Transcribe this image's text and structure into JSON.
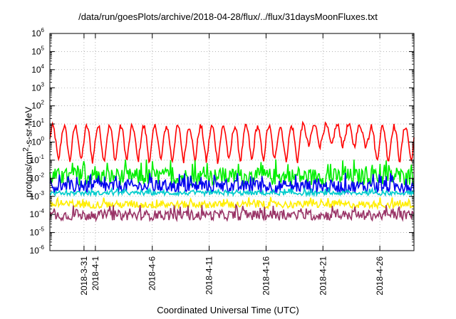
{
  "chart_data": {
    "type": "line",
    "title": "/data/run/goesPlots/archive/2018-04-28/flux/../flux/31daysMoonFluxes.txt",
    "xlabel": "Coordinated Universal Time (UTC)",
    "ylabel_html": "protons/cm<sup>2</sup>-s-sr-MeV",
    "yscale": "log",
    "ylim_exponent": [
      -6,
      6
    ],
    "y_tick_labels": [
      "10-6",
      "10-5",
      "10-4",
      "10-3",
      "10-2",
      "10-1",
      "100",
      "101",
      "102",
      "103",
      "104",
      "105",
      "106"
    ],
    "x_range_days": [
      "2018-03-28",
      "2018-04-29"
    ],
    "x_ticks": [
      "2018-3-31",
      "2018-4-1",
      "2018-4-6",
      "2018-4-11",
      "2018-4-16",
      "2018-4-21",
      "2018-4-26"
    ],
    "grid": true,
    "series": [
      {
        "color": "#ff0000",
        "approx_level": 1.0,
        "daily_cycle_amplitude_decades": 1.2,
        "samples": 420
      },
      {
        "color": "#00ee00",
        "approx_level": 0.012,
        "spikiness": 0.6,
        "samples": 420
      },
      {
        "color": "#0000ee",
        "approx_level": 0.0035,
        "spikiness": 0.45,
        "samples": 420
      },
      {
        "color": "#00cccc",
        "approx_level": 0.0015,
        "spikiness": 0.15,
        "samples": 420
      },
      {
        "color": "#ffee00",
        "approx_level": 0.00035,
        "spikiness": 0.25,
        "samples": 420
      },
      {
        "color": "#993366",
        "approx_level": 9e-05,
        "spikiness": 0.35,
        "samples": 420
      }
    ]
  }
}
